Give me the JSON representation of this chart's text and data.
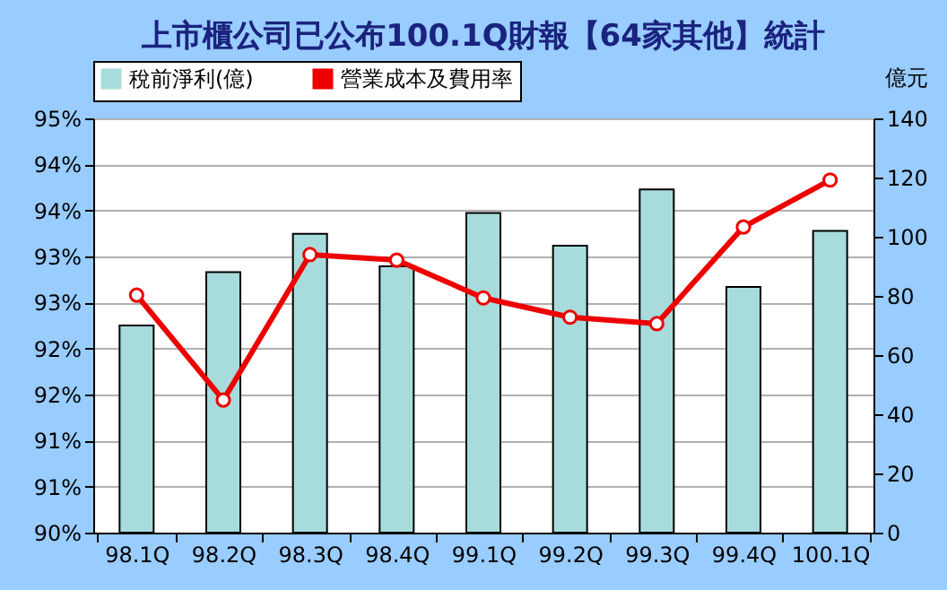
{
  "chart_data": {
    "type": "bar",
    "title": "上市櫃公司已公布100.1Q財報【64家其他】統計",
    "categories": [
      "98.1Q",
      "98.2Q",
      "98.3Q",
      "98.4Q",
      "99.1Q",
      "99.2Q",
      "99.3Q",
      "99.4Q",
      "100.1Q"
    ],
    "series": [
      {
        "name": "稅前淨利(億)",
        "axis": "y2",
        "color": "#a8dcdc",
        "values": [
          70,
          88,
          101,
          90,
          108,
          97,
          116,
          83,
          102
        ]
      },
      {
        "name": "營業成本及費用率",
        "type": "line",
        "color": "#ee0000",
        "values": [
          92.58,
          91.44,
          93.02,
          92.96,
          92.55,
          92.34,
          92.27,
          93.32,
          93.83
        ]
      }
    ],
    "ylim": [
      90,
      94.5
    ],
    "yticks": [
      {
        "value": 90,
        "label": "90%"
      },
      {
        "value": 90.5,
        "label": "91%"
      },
      {
        "value": 91,
        "label": "91%"
      },
      {
        "value": 91.5,
        "label": "92%"
      },
      {
        "value": 92,
        "label": "92%"
      },
      {
        "value": 92.5,
        "label": "93%"
      },
      {
        "value": 93,
        "label": "93%"
      },
      {
        "value": 93.5,
        "label": "94%"
      },
      {
        "value": 94,
        "label": "94%"
      },
      {
        "value": 94.5,
        "label": "95%"
      }
    ],
    "y2label": "億元",
    "y2lim": [
      0,
      140
    ],
    "y2ticks": [
      0,
      20,
      40,
      60,
      80,
      100,
      120,
      140
    ],
    "grid": "y",
    "legend": "top",
    "marker": "circle",
    "line_style": "solid"
  }
}
